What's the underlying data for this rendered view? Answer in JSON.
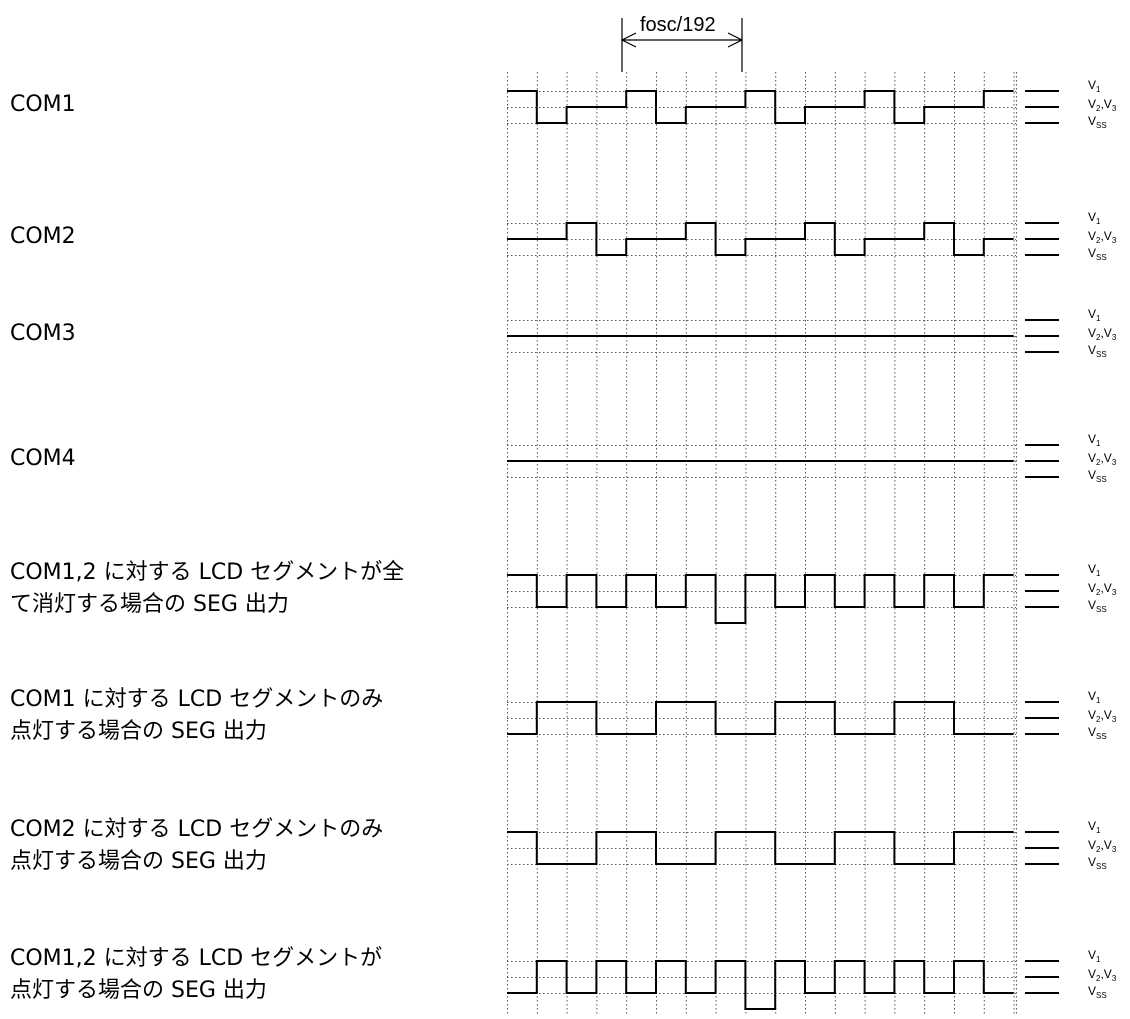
{
  "period_label": "fosc/192",
  "voltage_levels": {
    "v1": "V",
    "v1_sub": "1",
    "v23_v": "V",
    "v23_sub1": "2",
    "v23_sep": ",",
    "v23_v2": "V",
    "v23_sub2": "3",
    "vss": "V",
    "vss_sub": "SS"
  },
  "rows": [
    {
      "label_lines": [
        "COM1"
      ],
      "waveform": [
        2,
        0,
        1,
        1,
        2,
        0,
        1,
        1,
        2,
        0,
        1,
        1,
        2,
        0,
        1,
        1,
        2
      ]
    },
    {
      "label_lines": [
        "COM2"
      ],
      "waveform": [
        1,
        1,
        2,
        0,
        1,
        1,
        2,
        0,
        1,
        1,
        2,
        0,
        1,
        1,
        2,
        0,
        1
      ]
    },
    {
      "label_lines": [
        "COM3"
      ],
      "waveform": [
        1,
        1,
        1,
        1,
        1,
        1,
        1,
        1,
        1,
        1,
        1,
        1,
        1,
        1,
        1,
        1,
        1
      ]
    },
    {
      "label_lines": [
        "COM4"
      ],
      "waveform": [
        1,
        1,
        1,
        1,
        1,
        1,
        1,
        1,
        1,
        1,
        1,
        1,
        1,
        1,
        1,
        1,
        1
      ]
    },
    {
      "label_lines": [
        "COM1,2 に対する LCD セグメントが全",
        "て消灯する場合の SEG 出力"
      ],
      "waveform": [
        2,
        0,
        2,
        0,
        2,
        0,
        2,
        -1,
        2,
        0,
        2,
        0,
        2,
        0,
        2,
        0,
        2
      ]
    },
    {
      "label_lines": [
        "COM1 に対する LCD セグメントのみ",
        "点灯する場合の SEG 出力"
      ],
      "waveform": [
        0,
        2,
        2,
        0,
        0,
        2,
        2,
        0,
        0,
        2,
        2,
        0,
        0,
        2,
        2,
        0,
        0
      ]
    },
    {
      "label_lines": [
        "COM2 に対する LCD セグメントのみ",
        "点灯する場合の SEG 出力"
      ],
      "waveform": [
        2,
        0,
        0,
        2,
        2,
        0,
        0,
        2,
        2,
        0,
        0,
        2,
        2,
        0,
        0,
        2,
        2
      ]
    },
    {
      "label_lines": [
        "COM1,2 に対する LCD セグメントが",
        "点灯する場合の SEG 出力"
      ],
      "waveform": [
        0,
        2,
        0,
        2,
        0,
        2,
        0,
        2,
        -1,
        2,
        0,
        2,
        0,
        2,
        0,
        2,
        0
      ]
    }
  ]
}
